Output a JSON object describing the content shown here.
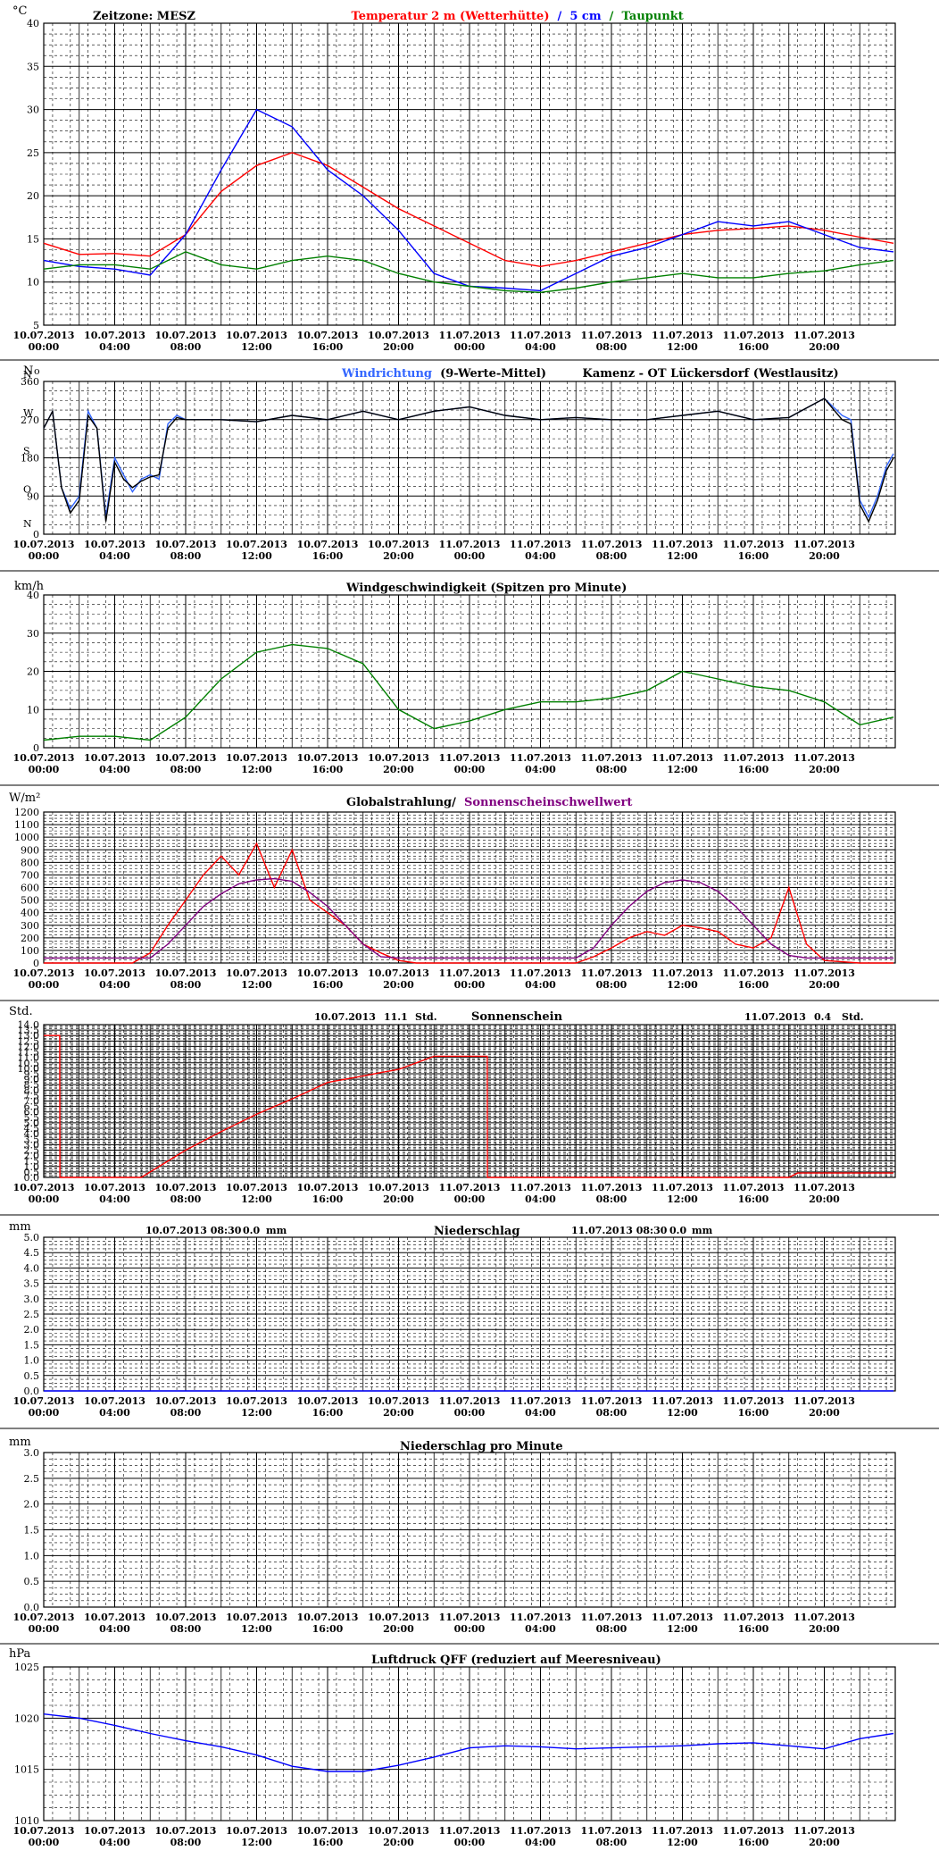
{
  "page": {
    "x_ticks": [
      [
        "10.07.2013",
        "00:00"
      ],
      [
        "10.07.2013",
        "04:00"
      ],
      [
        "10.07.2013",
        "08:00"
      ],
      [
        "10.07.2013",
        "12:00"
      ],
      [
        "10.07.2013",
        "16:00"
      ],
      [
        "10.07.2013",
        "20:00"
      ],
      [
        "11.07.2013",
        "00:00"
      ],
      [
        "11.07.2013",
        "04:00"
      ],
      [
        "11.07.2013",
        "08:00"
      ],
      [
        "11.07.2013",
        "12:00"
      ],
      [
        "11.07.2013",
        "16:00"
      ],
      [
        "11.07.2013",
        "20:00"
      ]
    ],
    "colors": {
      "red": "#ff0000",
      "blue": "#0000ff",
      "green": "#008000",
      "purple": "#800080",
      "dirblue": "#3366ff"
    }
  },
  "chart_data": [
    {
      "type": "line",
      "name": "temperature",
      "ylabel": "°C",
      "ylim": [
        5,
        40
      ],
      "yticks": [
        5,
        10,
        15,
        20,
        25,
        30,
        35,
        40
      ],
      "header": {
        "zone": "Zeitzone: MESZ",
        "t2": "Temperatur 2 m (Wetterhütte)",
        "sep": " / ",
        "t5": "5 cm",
        "sep2": " / ",
        "td": "Taupunkt"
      },
      "x_hours": [
        0,
        2,
        4,
        6,
        8,
        10,
        12,
        14,
        16,
        18,
        20,
        22,
        24,
        26,
        28,
        30,
        32,
        34,
        36,
        38,
        40,
        42,
        44,
        46,
        47.9
      ],
      "series": [
        {
          "name": "Temperatur 2 m (Wetterhütte)",
          "color": "#ff0000",
          "values": [
            14.5,
            13.2,
            13.3,
            13.0,
            15.5,
            20.5,
            23.5,
            25.0,
            23.5,
            21.0,
            18.5,
            16.5,
            14.5,
            12.5,
            11.8,
            12.5,
            13.5,
            14.5,
            15.5,
            16.0,
            16.2,
            16.5,
            16.0,
            15.2,
            14.5
          ]
        },
        {
          "name": "5 cm",
          "color": "#0000ff",
          "values": [
            12.5,
            11.8,
            11.5,
            10.8,
            15.5,
            23.0,
            30.0,
            28.0,
            23.0,
            20.0,
            16.0,
            11.0,
            9.5,
            9.3,
            9.0,
            11.0,
            13.0,
            14.0,
            15.5,
            17.0,
            16.5,
            17.0,
            15.5,
            14.0,
            13.5
          ]
        },
        {
          "name": "Taupunkt",
          "color": "#008000",
          "values": [
            11.5,
            12.0,
            12.0,
            11.5,
            13.5,
            12.0,
            11.5,
            12.5,
            13.0,
            12.5,
            11.0,
            10.0,
            9.5,
            9.0,
            8.8,
            9.3,
            10.0,
            10.5,
            11.0,
            10.5,
            10.5,
            11.0,
            11.3,
            12.0,
            12.5
          ]
        }
      ]
    },
    {
      "type": "line",
      "name": "wind-direction",
      "ylabel": "N",
      "ylabel2": "o",
      "ylim": [
        0,
        360
      ],
      "yticks": [
        0,
        90,
        180,
        270,
        360
      ],
      "ydir": [
        "N",
        "O",
        "S",
        "W",
        "N"
      ],
      "header": {
        "t1": "Windrichtung",
        "t2": " (9-Werte-Mittel)",
        "station": "Kamenz - OT Lückersdorf (Westlausitz)"
      },
      "x_hours": [
        0,
        0.5,
        1,
        1.5,
        2,
        2.5,
        3,
        3.5,
        4,
        4.5,
        5,
        5.5,
        6,
        6.5,
        7,
        7.5,
        8,
        10,
        12,
        14,
        16,
        18,
        20,
        22,
        24,
        26,
        28,
        30,
        32,
        34,
        36,
        38,
        40,
        42,
        44,
        45,
        45.5,
        46,
        46.5,
        47,
        47.5,
        47.9
      ],
      "series": [
        {
          "name": "Windrichtung",
          "color": "#3366ff",
          "values": [
            250,
            290,
            110,
            60,
            90,
            290,
            250,
            40,
            180,
            140,
            100,
            130,
            140,
            130,
            260,
            280,
            270,
            270,
            265,
            280,
            270,
            290,
            270,
            290,
            300,
            280,
            270,
            275,
            270,
            270,
            280,
            290,
            270,
            275,
            320,
            280,
            270,
            80,
            40,
            90,
            160,
            190
          ]
        },
        {
          "name": "9-Werte-Mittel",
          "color": "#000000",
          "values": [
            250,
            290,
            110,
            50,
            80,
            280,
            250,
            30,
            170,
            130,
            110,
            125,
            135,
            140,
            250,
            275,
            270,
            270,
            265,
            280,
            270,
            290,
            270,
            290,
            300,
            280,
            270,
            275,
            270,
            270,
            280,
            290,
            270,
            275,
            320,
            270,
            260,
            70,
            30,
            80,
            150,
            180
          ]
        }
      ]
    },
    {
      "type": "line",
      "name": "wind-speed",
      "ylabel": "km/h",
      "ylim": [
        0,
        40
      ],
      "yticks": [
        0,
        10,
        20,
        30,
        40
      ],
      "header": {
        "t1": "Windgeschwindigkeit (Spitzen pro Minute)"
      },
      "x_hours": [
        0,
        2,
        4,
        6,
        8,
        10,
        12,
        14,
        16,
        18,
        20,
        22,
        24,
        26,
        28,
        30,
        32,
        34,
        36,
        38,
        40,
        42,
        44,
        46,
        47.9
      ],
      "series": [
        {
          "name": "Windgeschwindigkeit",
          "color": "#008000",
          "values": [
            2,
            3,
            3,
            2,
            8,
            18,
            25,
            27,
            26,
            22,
            10,
            5,
            7,
            10,
            12,
            12,
            13,
            15,
            20,
            18,
            16,
            15,
            12,
            6,
            8
          ]
        }
      ]
    },
    {
      "type": "line",
      "name": "global-radiation",
      "ylabel": "W/m²",
      "ylim": [
        0,
        1200
      ],
      "yticks": [
        0,
        100,
        200,
        300,
        400,
        500,
        600,
        700,
        800,
        900,
        1000,
        1100,
        1200
      ],
      "header": {
        "t1": "Globalstrahlung/",
        "t2": " Sonnenscheinschwellwert"
      },
      "x_hours": [
        0,
        2,
        4,
        5,
        6,
        7,
        8,
        9,
        10,
        11,
        12,
        13,
        14,
        15,
        16,
        17,
        18,
        19,
        20,
        21,
        22,
        24,
        26,
        28,
        30,
        31,
        32,
        33,
        34,
        35,
        36,
        37,
        38,
        39,
        40,
        41,
        42,
        43,
        44,
        46,
        47.9
      ],
      "series": [
        {
          "name": "Globalstrahlung",
          "color": "#ff0000",
          "values": [
            0,
            0,
            0,
            0,
            80,
            300,
            500,
            700,
            850,
            700,
            950,
            600,
            900,
            500,
            400,
            300,
            150,
            80,
            20,
            0,
            0,
            0,
            0,
            0,
            0,
            50,
            120,
            200,
            250,
            220,
            300,
            280,
            250,
            150,
            120,
            200,
            600,
            150,
            20,
            0,
            0
          ]
        },
        {
          "name": "Sonnenscheinschwellwert",
          "color": "#800080",
          "values": [
            40,
            40,
            40,
            40,
            40,
            150,
            300,
            450,
            550,
            630,
            660,
            670,
            650,
            560,
            450,
            300,
            150,
            50,
            40,
            40,
            40,
            40,
            40,
            40,
            40,
            120,
            300,
            450,
            570,
            640,
            660,
            640,
            570,
            450,
            300,
            150,
            60,
            40,
            40,
            40,
            40
          ]
        }
      ]
    },
    {
      "type": "line",
      "name": "sunshine",
      "ylabel": "Std.",
      "ylim": [
        0,
        14
      ],
      "yticks": [
        0,
        0.5,
        1,
        1.5,
        2,
        2.5,
        3,
        3.5,
        4,
        4.5,
        5,
        5.5,
        6,
        6.5,
        7,
        7.5,
        8,
        8.5,
        9,
        9.5,
        10,
        10.5,
        11,
        11.5,
        12,
        12.5,
        13,
        13.5,
        14
      ],
      "ytick_labels": [
        "0.0",
        "0.5",
        "1.0",
        "1.5",
        "2.0",
        "2.5",
        "3.0",
        "3.5",
        "4.0",
        "4.5",
        "5.0",
        "5.5",
        "6.0",
        "6.5",
        "7.0",
        "7.5",
        "8.0",
        "8.5",
        "9.0",
        "9.5",
        "10.0",
        "10.5",
        "11.0",
        "11.5",
        "12.0",
        "12.5",
        "13.0",
        "13.5",
        "14.0"
      ],
      "header": {
        "d1": "10.07.2013",
        "v1": "11.1",
        "u1": "Std.",
        "t1": "Sonnenschein",
        "d2": "11.07.2013",
        "v2": "0.4",
        "u2": "Std."
      },
      "x_hours": [
        0,
        0.9,
        0.91,
        5.5,
        8,
        10,
        12,
        14,
        16,
        18,
        19,
        20,
        21,
        22,
        23,
        24,
        25,
        25.01,
        38,
        42,
        42.5,
        47.9
      ],
      "series": [
        {
          "name": "Sonnenschein",
          "color": "#ff0000",
          "values": [
            13.0,
            13.0,
            0.0,
            0.0,
            2.5,
            4.2,
            5.8,
            7.2,
            8.7,
            9.3,
            9.6,
            9.9,
            10.5,
            11.1,
            11.1,
            11.1,
            11.1,
            0.0,
            0.0,
            0.0,
            0.4,
            0.4
          ]
        }
      ]
    },
    {
      "type": "line",
      "name": "precipitation",
      "ylabel": "mm",
      "ylim": [
        0,
        5
      ],
      "yticks": [
        0,
        0.5,
        1,
        1.5,
        2,
        2.5,
        3,
        3.5,
        4,
        4.5,
        5
      ],
      "ytick_labels": [
        "0.0",
        "0.5",
        "1.0",
        "1.5",
        "2.0",
        "2.5",
        "3.0",
        "3.5",
        "4.0",
        "4.5",
        "5.0"
      ],
      "header": {
        "d1": "10.07.2013 08:30",
        "v1": "0.0",
        "u1": "mm",
        "t1": "Niederschlag",
        "d2": "11.07.2013 08:30",
        "v2": "0.0",
        "u2": "mm"
      },
      "x_hours": [
        0,
        47.9
      ],
      "series": [
        {
          "name": "Niederschlag",
          "color": "#0000ff",
          "values": [
            0,
            0
          ]
        }
      ]
    },
    {
      "type": "line",
      "name": "precipitation-per-minute",
      "ylabel": "mm",
      "ylim": [
        0,
        3
      ],
      "yticks": [
        0,
        0.5,
        1,
        1.5,
        2,
        2.5,
        3
      ],
      "ytick_labels": [
        "0.0",
        "0.5",
        "1.0",
        "1.5",
        "2.0",
        "2.5",
        "3.0"
      ],
      "header": {
        "t1": "Niederschlag pro Minute"
      },
      "x_hours": [
        0,
        47.9
      ],
      "series": []
    },
    {
      "type": "line",
      "name": "air-pressure",
      "ylabel": "hPa",
      "ylim": [
        1010,
        1025
      ],
      "yticks": [
        1010,
        1015,
        1020,
        1025
      ],
      "header": {
        "t1": "Luftdruck QFF (reduziert auf Meeresniveau)"
      },
      "x_hours": [
        0,
        2,
        4,
        6,
        8,
        10,
        12,
        14,
        16,
        18,
        20,
        22,
        24,
        26,
        28,
        30,
        32,
        34,
        36,
        38,
        40,
        42,
        44,
        46,
        47.9
      ],
      "series": [
        {
          "name": "Luftdruck QFF",
          "color": "#0000ff",
          "values": [
            1020.4,
            1020.0,
            1019.3,
            1018.5,
            1017.8,
            1017.2,
            1016.4,
            1015.3,
            1014.8,
            1014.8,
            1015.4,
            1016.2,
            1017.1,
            1017.3,
            1017.2,
            1017.0,
            1017.1,
            1017.2,
            1017.3,
            1017.5,
            1017.6,
            1017.3,
            1017.0,
            1018.0,
            1018.5
          ]
        }
      ]
    }
  ]
}
